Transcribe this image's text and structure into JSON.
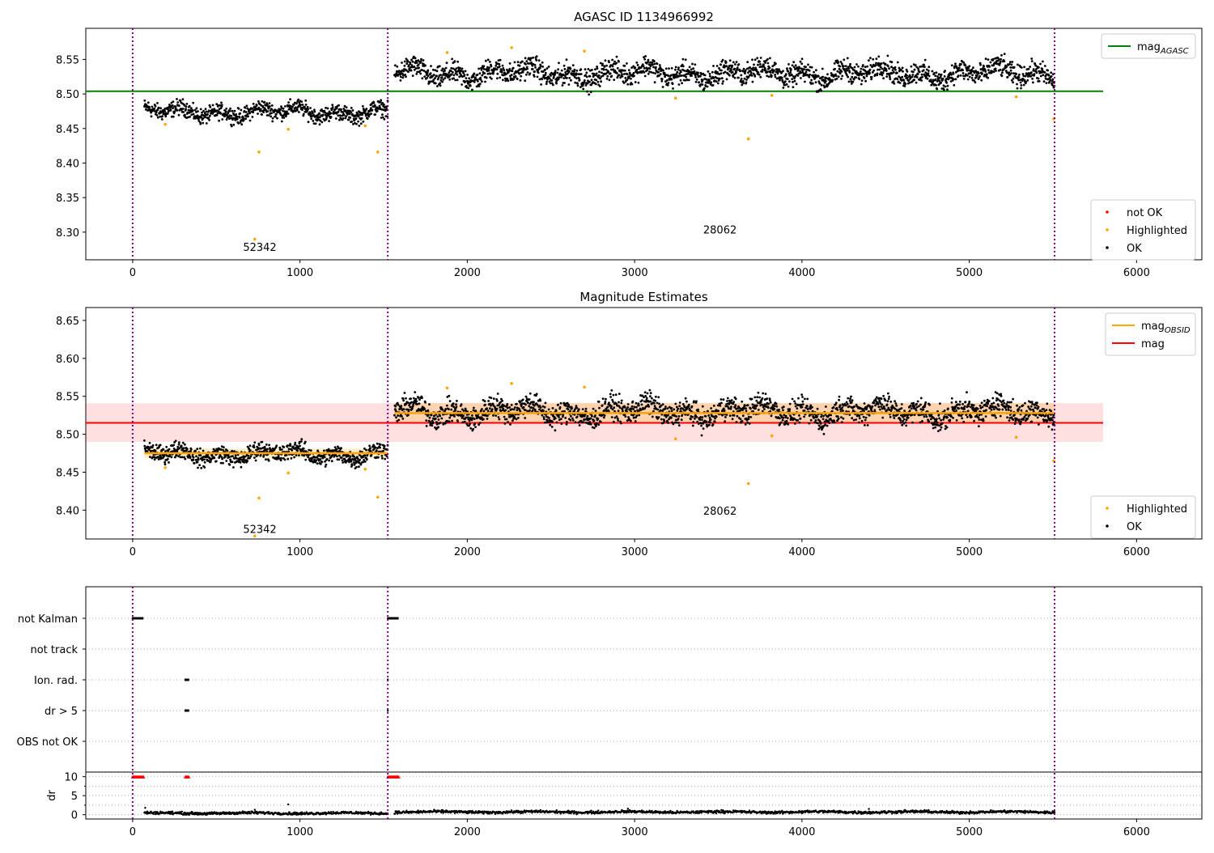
{
  "chart_data": [
    {
      "type": "scatter",
      "title": "AGASC ID 1134966992",
      "xlim": [
        -280,
        6390
      ],
      "ylim": [
        8.26,
        8.595
      ],
      "x_ticks": [
        "0",
        "1000",
        "2000",
        "3000",
        "4000",
        "5000",
        "6000"
      ],
      "y_ticks": [
        "8.30",
        "8.35",
        "8.40",
        "8.45",
        "8.50",
        "8.55"
      ],
      "vertical_lines_x": [
        0,
        1525,
        5510
      ],
      "obsid_labels": [
        {
          "text": "52342",
          "x": 760,
          "y": 8.273
        },
        {
          "text": "28062",
          "x": 3510,
          "y": 8.298
        }
      ],
      "reference_line": {
        "name": "mag_AGASC",
        "y": 8.504,
        "x_range": [
          -280,
          5800
        ],
        "color": "#008000"
      },
      "segments": [
        {
          "x_range": [
            70,
            1525
          ],
          "mean": 8.474,
          "spread": 0.008,
          "color": "#000000"
        },
        {
          "x_range": [
            1565,
            5510
          ],
          "mean": 8.53,
          "spread": 0.011,
          "color": "#000000"
        }
      ],
      "highlighted": [
        [
          730,
          8.29
        ],
        [
          755,
          8.416
        ],
        [
          930,
          8.449
        ],
        [
          1390,
          8.454
        ],
        [
          1465,
          8.416
        ],
        [
          195,
          8.456
        ],
        [
          1880,
          8.56
        ],
        [
          2265,
          8.567
        ],
        [
          2700,
          8.562
        ],
        [
          3245,
          8.494
        ],
        [
          3680,
          8.435
        ],
        [
          3820,
          8.498
        ],
        [
          5280,
          8.496
        ],
        [
          5505,
          8.464
        ]
      ],
      "legends": {
        "upper": [
          {
            "label": "mag",
            "sub": "AGASC",
            "color": "#008000",
            "kind": "line"
          }
        ],
        "lower": [
          {
            "label": "not OK",
            "color": "#ff0000",
            "kind": "dot"
          },
          {
            "label": "Highlighted",
            "color": "#ffa500",
            "kind": "dot"
          },
          {
            "label": "OK",
            "color": "#000000",
            "kind": "dot"
          }
        ]
      }
    },
    {
      "type": "scatter",
      "title": "Magnitude Estimates",
      "xlim": [
        -280,
        6390
      ],
      "ylim": [
        8.362,
        8.667
      ],
      "x_ticks": [
        "0",
        "1000",
        "2000",
        "3000",
        "4000",
        "5000",
        "6000"
      ],
      "y_ticks": [
        "8.40",
        "8.45",
        "8.50",
        "8.55",
        "8.60",
        "8.65"
      ],
      "vertical_lines_x": [
        0,
        1525,
        5510
      ],
      "obsid_labels": [
        {
          "text": "52342",
          "x": 760,
          "y": 8.37
        },
        {
          "text": "28062",
          "x": 3510,
          "y": 8.394
        }
      ],
      "mag_line": {
        "name": "mag",
        "y": 8.515,
        "band": [
          8.49,
          8.541
        ],
        "x_range": [
          -280,
          5800
        ],
        "color": "#ff0000"
      },
      "obsid_lines": [
        {
          "name": "mag_OBSID",
          "y": 8.475,
          "band": [
            8.469,
            8.481
          ],
          "x_range": [
            70,
            1525
          ],
          "color": "#ffa500"
        },
        {
          "name": "mag_OBSID",
          "y": 8.528,
          "band": [
            8.515,
            8.541
          ],
          "x_range": [
            1565,
            5510
          ],
          "color": "#ffa500"
        }
      ],
      "highlighted": [
        [
          730,
          8.366
        ],
        [
          755,
          8.416
        ],
        [
          930,
          8.449
        ],
        [
          1390,
          8.454
        ],
        [
          1465,
          8.417
        ],
        [
          195,
          8.456
        ],
        [
          1880,
          8.561
        ],
        [
          2265,
          8.567
        ],
        [
          2700,
          8.562
        ],
        [
          3245,
          8.494
        ],
        [
          3680,
          8.435
        ],
        [
          3820,
          8.498
        ],
        [
          5280,
          8.496
        ],
        [
          5505,
          8.465
        ]
      ],
      "legends": {
        "upper": [
          {
            "label": "mag",
            "sub": "OBSID",
            "color": "#ffa500",
            "kind": "line"
          },
          {
            "label": "mag",
            "sub": "",
            "color": "#ff0000",
            "kind": "line"
          }
        ],
        "lower": [
          {
            "label": "Highlighted",
            "color": "#ffa500",
            "kind": "dot"
          },
          {
            "label": "OK",
            "color": "#000000",
            "kind": "dot"
          }
        ]
      }
    },
    {
      "type": "scatter",
      "title": "",
      "xlim": [
        -280,
        6390
      ],
      "x_ticks": [
        "0",
        "1000",
        "2000",
        "3000",
        "4000",
        "5000",
        "6000"
      ],
      "flag_rows": [
        "not Kalman",
        "not track",
        "Ion. rad.",
        "dr > 5",
        "OBS not OK"
      ],
      "flag_marks": [
        {
          "row": "not Kalman",
          "x_range": [
            0,
            65
          ]
        },
        {
          "row": "not Kalman",
          "x_range": [
            1525,
            1590
          ]
        },
        {
          "row": "Ion. rad.",
          "x_range": [
            315,
            335
          ]
        },
        {
          "row": "Ion. rad.",
          "x_range": [
            1525,
            1528
          ]
        },
        {
          "row": "dr > 5",
          "x_range": [
            315,
            335
          ]
        },
        {
          "row": "dr > 5",
          "x_range": [
            1525,
            1528
          ]
        }
      ],
      "dr_ylabel": "dr",
      "dr_ylim": [
        -0.5,
        11
      ],
      "dr_ticks": [
        "0",
        "5",
        "10"
      ],
      "dr_red_marks": [
        [
          0,
          65
        ],
        [
          315,
          335
        ],
        [
          1525,
          1590
        ]
      ],
      "dr_segments": [
        {
          "x_range": [
            70,
            1525
          ],
          "mean": 0.4
        },
        {
          "x_range": [
            1565,
            5510
          ],
          "mean": 0.7
        }
      ],
      "dr_outliers": [
        [
          75,
          1.8
        ],
        [
          730,
          1.3
        ],
        [
          930,
          2.7
        ],
        [
          2960,
          1.6
        ],
        [
          4400,
          1.5
        ]
      ],
      "vertical_lines_x": [
        0,
        1525,
        5510
      ]
    }
  ]
}
